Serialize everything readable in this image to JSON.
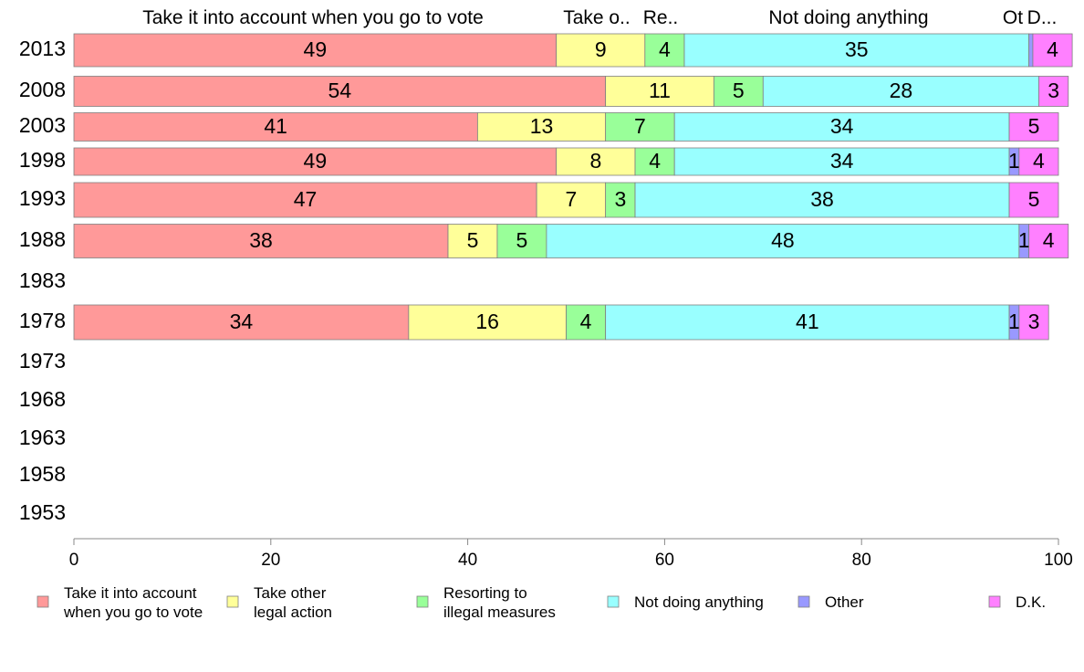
{
  "chart_data": {
    "type": "bar",
    "orientation": "horizontal",
    "stacked": true,
    "categories": [
      "2013",
      "2008",
      "2003",
      "1998",
      "1993",
      "1988",
      "1983",
      "1978",
      "1973",
      "1968",
      "1963",
      "1958",
      "1953"
    ],
    "series": [
      {
        "name": "Take it into account when you go to vote",
        "color": "#ff9999",
        "values": [
          49,
          54,
          41,
          49,
          47,
          38,
          null,
          34,
          null,
          null,
          null,
          null,
          null
        ]
      },
      {
        "name": "Take other legal action",
        "color": "#ffff99",
        "values": [
          9,
          11,
          13,
          8,
          7,
          5,
          null,
          16,
          null,
          null,
          null,
          null,
          null
        ]
      },
      {
        "name": "Resorting to illegal measures",
        "color": "#99ff99",
        "values": [
          4,
          5,
          7,
          4,
          3,
          5,
          null,
          4,
          null,
          null,
          null,
          null,
          null
        ]
      },
      {
        "name": "Not doing anything",
        "color": "#99ffff",
        "values": [
          35,
          28,
          34,
          34,
          38,
          48,
          null,
          41,
          null,
          null,
          null,
          null,
          null
        ]
      },
      {
        "name": "Other",
        "color": "#9999ff",
        "values": [
          0.4,
          0,
          0,
          1,
          0,
          1,
          null,
          1,
          null,
          null,
          null,
          null,
          null
        ]
      },
      {
        "name": "D.K.",
        "color": "#ff80ff",
        "values": [
          4,
          3,
          5,
          4,
          5,
          4,
          null,
          3,
          null,
          null,
          null,
          null,
          null
        ]
      }
    ],
    "data_labels": [
      [
        "49",
        "9",
        "4",
        "35",
        "",
        "4"
      ],
      [
        "54",
        "11",
        "5",
        "28",
        "",
        "3"
      ],
      [
        "41",
        "13",
        "7",
        "34",
        "",
        "5"
      ],
      [
        "49",
        "8",
        "4",
        "34",
        "1",
        "4"
      ],
      [
        "47",
        "7",
        "3",
        "38",
        "",
        "5"
      ],
      [
        "38",
        "5",
        "5",
        "48",
        "1",
        "4"
      ],
      [
        "",
        "",
        "",
        "",
        "",
        ""
      ],
      [
        "34",
        "16",
        "4",
        "41",
        "1",
        "3"
      ],
      [
        "",
        "",
        "",
        "",
        "",
        ""
      ],
      [
        "",
        "",
        "",
        "",
        "",
        ""
      ],
      [
        "",
        "",
        "",
        "",
        "",
        ""
      ],
      [
        "",
        "",
        "",
        "",
        "",
        ""
      ],
      [
        "",
        "",
        "",
        "",
        "",
        ""
      ]
    ],
    "column_headers": [
      "Take it into account when you go to vote",
      "Take o..",
      "Re..",
      "Not doing anything",
      "Ot",
      "D..."
    ],
    "xlim": [
      0,
      100
    ],
    "xticks": [
      0,
      20,
      40,
      60,
      80,
      100
    ],
    "legend": {
      "placement": "bottom",
      "entries": [
        [
          "Take it into account",
          "when you go to vote"
        ],
        [
          "Take other",
          "legal action"
        ],
        [
          "Resorting to",
          "illegal measures"
        ],
        [
          "Not doing anything"
        ],
        [
          "Other"
        ],
        [
          "D.K."
        ]
      ]
    },
    "grid": false
  }
}
